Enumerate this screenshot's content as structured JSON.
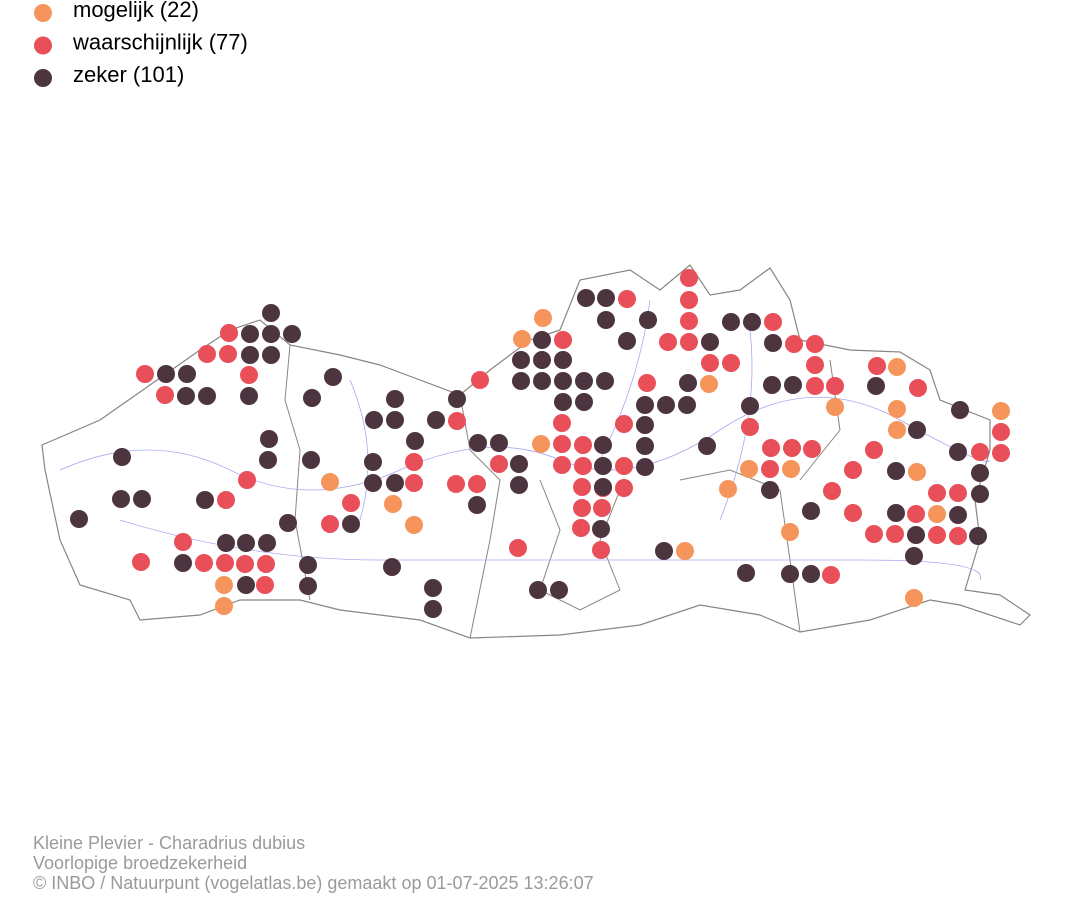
{
  "legend": {
    "items": [
      {
        "label": "mogelijk (22)",
        "color": "#f5955c"
      },
      {
        "label": "waarschijnlijk (77)",
        "color": "#e84f58"
      },
      {
        "label": "zeker (101)",
        "color": "#4d3540"
      }
    ]
  },
  "footer": {
    "lines": [
      "Kleine Plevier - Charadrius dubius",
      "Voorlopige broedzekerheid",
      "© INBO / Natuurpunt (vogelatlas.be) gemaakt op 01-07-2025 13:26:07"
    ]
  }
}
